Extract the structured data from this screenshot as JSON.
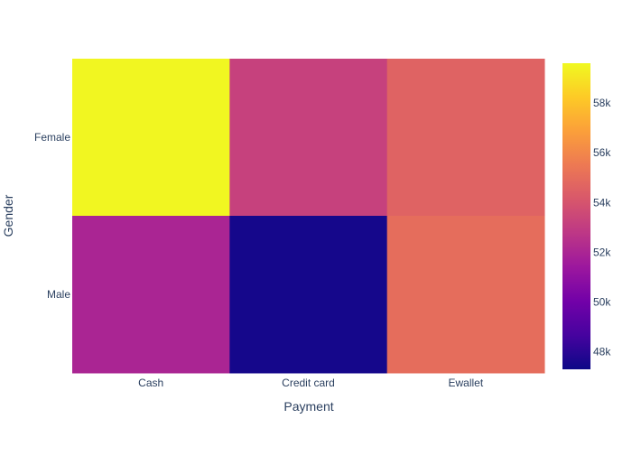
{
  "chart_data": {
    "type": "heatmap",
    "title": "",
    "xlabel": "Payment",
    "ylabel": "Gender",
    "x_categories": [
      "Cash",
      "Credit card",
      "Ewallet"
    ],
    "y_categories": [
      "Female",
      "Male"
    ],
    "values": [
      [
        59500,
        53200,
        54600
      ],
      [
        52000,
        47500,
        55000
      ]
    ],
    "colorscale": "plasma",
    "colorbar": {
      "range": [
        47300,
        59600
      ],
      "tickvals": [
        48000,
        50000,
        52000,
        54000,
        56000,
        58000
      ],
      "ticktext": [
        "48k",
        "50k",
        "52k",
        "54k",
        "56k",
        "58k"
      ]
    },
    "font_color": "#2a3f5f"
  }
}
